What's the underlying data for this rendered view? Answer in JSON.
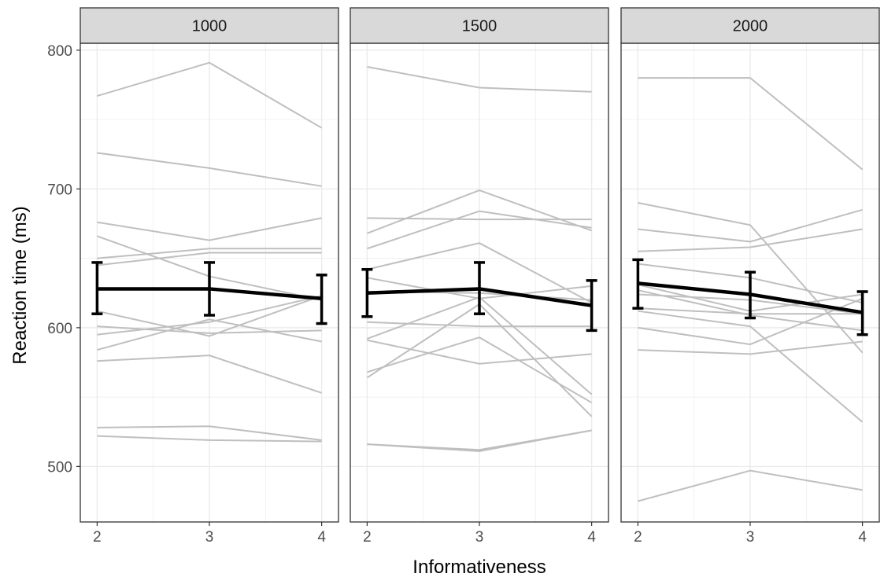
{
  "chart_data": {
    "type": "line",
    "xlabel": "Informativeness",
    "ylabel": "Reaction time (ms)",
    "x": [
      2,
      3,
      4
    ],
    "xlim": [
      1.85,
      4.15
    ],
    "ylim": [
      460,
      805
    ],
    "yticks": [
      500,
      600,
      700,
      800
    ],
    "y_minor_ticks": [
      550,
      650,
      750
    ],
    "grid": true,
    "theme": "bw",
    "colors": {
      "individual": "#bfbfbf",
      "mean": "#000000",
      "strip": "#d9d9d9",
      "grid": "#ebebeb",
      "border": "#333333"
    },
    "facets": [
      {
        "label": "1000",
        "individual_series": [
          [
            767,
            791,
            744
          ],
          [
            726,
            715,
            702
          ],
          [
            676,
            663,
            679
          ],
          [
            666,
            637,
            620
          ],
          [
            650,
            657,
            657
          ],
          [
            645,
            654,
            654
          ],
          [
            612,
            594,
            623
          ],
          [
            601,
            596,
            598
          ],
          [
            595,
            604,
            623
          ],
          [
            584,
            606,
            590
          ],
          [
            576,
            580,
            553
          ],
          [
            528,
            529,
            519
          ],
          [
            522,
            519,
            518
          ]
        ],
        "mean": [
          628,
          628,
          621
        ],
        "error_low": [
          610,
          609,
          603
        ],
        "error_high": [
          647,
          647,
          638
        ]
      },
      {
        "label": "1500",
        "individual_series": [
          [
            788,
            773,
            770
          ],
          [
            679,
            678,
            678
          ],
          [
            668,
            699,
            670
          ],
          [
            657,
            684,
            672
          ],
          [
            642,
            661,
            618
          ],
          [
            636,
            621,
            630
          ],
          [
            626,
            625,
            620
          ],
          [
            604,
            601,
            601
          ],
          [
            592,
            622,
            552
          ],
          [
            591,
            574,
            581
          ],
          [
            568,
            593,
            546
          ],
          [
            564,
            617,
            536
          ],
          [
            516,
            512,
            526
          ],
          [
            516,
            511,
            526
          ]
        ],
        "mean": [
          625,
          628,
          616
        ],
        "error_low": [
          608,
          610,
          598
        ],
        "error_high": [
          642,
          647,
          634
        ]
      },
      {
        "label": "2000",
        "individual_series": [
          [
            780,
            780,
            714
          ],
          [
            690,
            674,
            582
          ],
          [
            671,
            662,
            685
          ],
          [
            655,
            658,
            671
          ],
          [
            646,
            636,
            618
          ],
          [
            631,
            612,
            624
          ],
          [
            627,
            609,
            598
          ],
          [
            624,
            620,
            610
          ],
          [
            614,
            610,
            610
          ],
          [
            612,
            601,
            532
          ],
          [
            600,
            588,
            621
          ],
          [
            584,
            581,
            590
          ],
          [
            475,
            497,
            483
          ]
        ],
        "mean": [
          632,
          624,
          611
        ],
        "error_low": [
          614,
          607,
          595
        ],
        "error_high": [
          649,
          640,
          626
        ]
      }
    ]
  }
}
